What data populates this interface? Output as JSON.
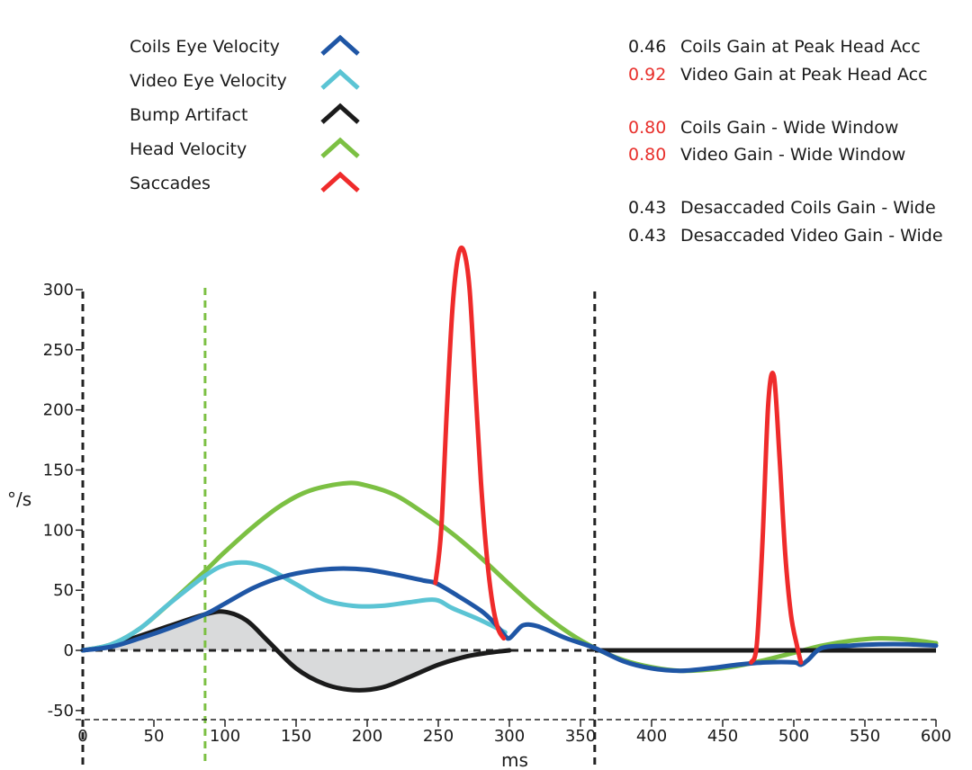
{
  "chart_data": {
    "type": "line",
    "xlabel": "ms",
    "ylabel": "°/s",
    "xlim": [
      0,
      600
    ],
    "ylim": [
      -50,
      300
    ],
    "x_ticks": [
      0,
      50,
      100,
      150,
      200,
      250,
      300,
      350,
      400,
      450,
      500,
      550,
      600
    ],
    "y_ticks": [
      -50,
      0,
      50,
      100,
      150,
      200,
      250,
      300
    ],
    "vertical_markers": [
      {
        "x": 0,
        "color": "#222222",
        "style": "dashed"
      },
      {
        "x": 86,
        "color": "#7cc043",
        "style": "dashed"
      },
      {
        "x": 360,
        "color": "#222222",
        "style": "dashed"
      }
    ],
    "zero_line": {
      "y": 0,
      "x_range": [
        0,
        360
      ],
      "style": "dashed"
    },
    "series": [
      {
        "name": "Head Velocity",
        "color": "#7cc043",
        "x": [
          0,
          20,
          40,
          60,
          86,
          100,
          120,
          140,
          160,
          185,
          200,
          220,
          240,
          260,
          280,
          300,
          320,
          340,
          360,
          380,
          400,
          420,
          440,
          460,
          480,
          500,
          520,
          540,
          560,
          580,
          600
        ],
        "y": [
          0,
          5,
          18,
          38,
          66,
          82,
          103,
          121,
          133,
          139,
          137,
          129,
          114,
          97,
          77,
          55,
          34,
          16,
          2,
          -8,
          -14,
          -17,
          -16,
          -13,
          -8,
          -2,
          4,
          8,
          10,
          9,
          6
        ]
      },
      {
        "name": "Coils Eye Velocity",
        "color": "#1f56a5",
        "x": [
          0,
          20,
          40,
          60,
          86,
          100,
          120,
          140,
          160,
          180,
          200,
          220,
          240,
          248,
          260,
          280,
          290,
          297,
          300,
          305,
          310,
          320,
          340,
          360,
          380,
          400,
          420,
          440,
          460,
          480,
          500,
          505,
          510,
          520,
          540,
          560,
          580,
          600
        ],
        "y": [
          0,
          3,
          10,
          18,
          30,
          39,
          52,
          61,
          66,
          68,
          67,
          63,
          58,
          56,
          48,
          33,
          22,
          12,
          10,
          16,
          21,
          20,
          10,
          2,
          -9,
          -15,
          -17,
          -15,
          -12,
          -10,
          -10,
          -12,
          -8,
          2,
          4,
          5,
          5,
          4
        ]
      },
      {
        "name": "Video Eye Velocity",
        "color": "#5bc4d4",
        "x": [
          0,
          20,
          40,
          60,
          86,
          100,
          115,
          130,
          150,
          170,
          190,
          210,
          230,
          248,
          260,
          280,
          297
        ],
        "y": [
          0,
          5,
          18,
          38,
          62,
          71,
          73,
          68,
          55,
          42,
          37,
          37,
          40,
          42,
          35,
          25,
          15
        ]
      },
      {
        "name": "Bump Artifact",
        "color": "#1b1b1b",
        "x": [
          0,
          20,
          40,
          60,
          86,
          100,
          115,
          130,
          150,
          170,
          190,
          210,
          230,
          250,
          270,
          285,
          300,
          360,
          600
        ],
        "y": [
          0,
          4,
          12,
          20,
          30,
          32,
          25,
          8,
          -15,
          -28,
          -33,
          -31,
          -22,
          -12,
          -5,
          -2,
          0,
          0,
          0
        ]
      },
      {
        "name": "Saccades",
        "color": "#ef2b2b",
        "x": [
          248,
          252,
          256,
          260,
          264,
          268,
          272,
          276,
          280,
          284,
          288,
          292,
          296,
          470,
          474,
          478,
          482,
          486,
          490,
          494,
          498,
          502,
          505
        ],
        "y": [
          56,
          100,
          200,
          285,
          328,
          332,
          300,
          220,
          140,
          80,
          40,
          18,
          10,
          -10,
          5,
          90,
          205,
          228,
          160,
          80,
          30,
          5,
          -10
        ]
      }
    ],
    "shaded_regions": [
      {
        "between": [
          "Bump Artifact",
          "zero"
        ],
        "x_range": [
          0,
          300
        ],
        "color": "#d9dadb"
      }
    ]
  },
  "legend": {
    "items": [
      {
        "label": "Coils Eye Velocity",
        "color": "#1f56a5"
      },
      {
        "label": "Video Eye Velocity",
        "color": "#5bc4d4"
      },
      {
        "label": "Bump Artifact",
        "color": "#1b1b1b"
      },
      {
        "label": "Head Velocity",
        "color": "#7cc043"
      },
      {
        "label": "Saccades",
        "color": "#ef2b2b"
      }
    ]
  },
  "gains": [
    {
      "value": "0.46",
      "label": "Coils Gain at Peak Head Acc",
      "value_color": "#1a1a1a"
    },
    {
      "value": "0.92",
      "label": "Video Gain at Peak Head Acc",
      "value_color": "#e8302c"
    },
    {
      "value": "0.80",
      "label": "Coils Gain - Wide Window",
      "value_color": "#e8302c"
    },
    {
      "value": "0.80",
      "label": "Video Gain - Wide Window",
      "value_color": "#e8302c"
    },
    {
      "value": "0.43",
      "label": "Desaccaded Coils Gain - Wide",
      "value_color": "#1a1a1a"
    },
    {
      "value": "0.43",
      "label": "Desaccaded Video Gain - Wide",
      "value_color": "#1a1a1a"
    }
  ]
}
